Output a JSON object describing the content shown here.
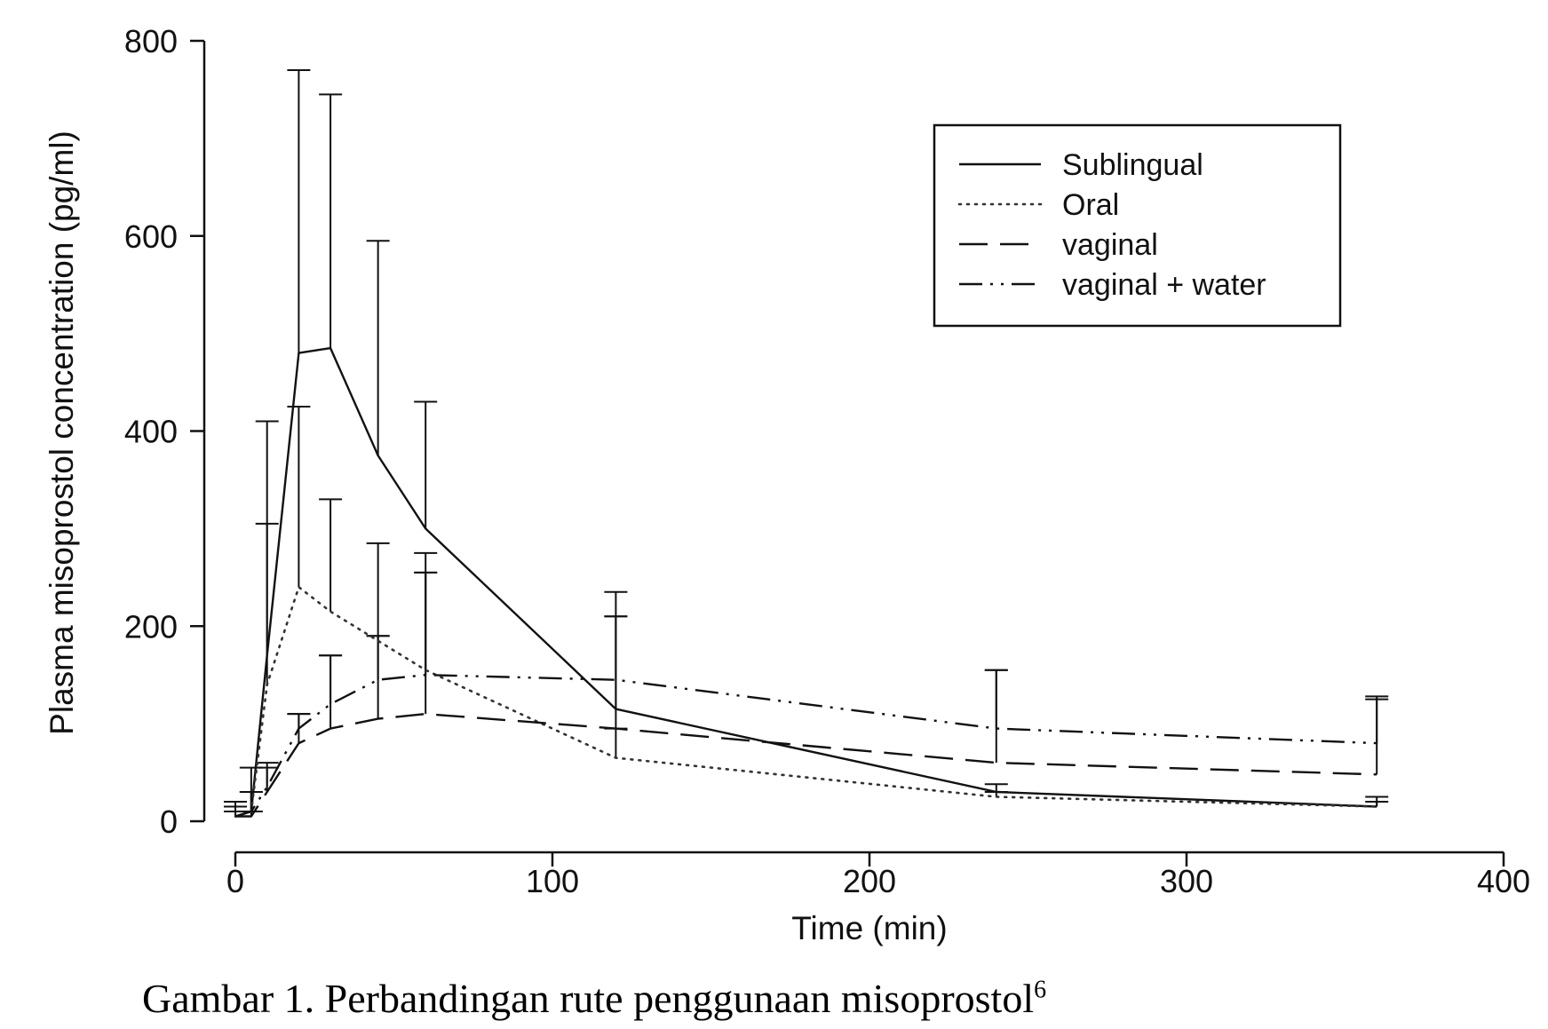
{
  "chart_data": {
    "type": "line",
    "title": "",
    "xlabel": "Time (min)",
    "ylabel": "Plasma misoprostol concentration (pg/ml)",
    "xlim": [
      0,
      400
    ],
    "ylim": [
      0,
      800
    ],
    "xticks": [
      0,
      100,
      200,
      300,
      400
    ],
    "yticks": [
      0,
      200,
      400,
      600,
      800
    ],
    "grid": false,
    "legend_position": "top-right",
    "series": [
      {
        "name": "Sublingual",
        "style": "solid",
        "color": "#111111",
        "points": [
          [
            0,
            5
          ],
          [
            5,
            10
          ],
          [
            10,
            170
          ],
          [
            20,
            480
          ],
          [
            30,
            485
          ],
          [
            45,
            375
          ],
          [
            60,
            300
          ],
          [
            120,
            115
          ],
          [
            240,
            30
          ],
          [
            360,
            15
          ]
        ],
        "error": [
          10,
          20,
          240,
          290,
          260,
          220,
          130,
          95,
          8,
          10
        ]
      },
      {
        "name": "Oral",
        "style": "dotted",
        "color": "#333333",
        "points": [
          [
            0,
            5
          ],
          [
            5,
            10
          ],
          [
            10,
            140
          ],
          [
            20,
            240
          ],
          [
            30,
            215
          ],
          [
            45,
            185
          ],
          [
            60,
            155
          ],
          [
            120,
            65
          ],
          [
            240,
            25
          ],
          [
            360,
            15
          ]
        ],
        "error": [
          5,
          20,
          165,
          185,
          115,
          100,
          120,
          30,
          5,
          5
        ]
      },
      {
        "name": "vaginal",
        "style": "dashed",
        "color": "#111111",
        "points": [
          [
            0,
            5
          ],
          [
            5,
            5
          ],
          [
            10,
            30
          ],
          [
            20,
            80
          ],
          [
            30,
            95
          ],
          [
            45,
            105
          ],
          [
            60,
            110
          ],
          [
            120,
            95
          ],
          [
            240,
            60
          ],
          [
            360,
            48
          ]
        ],
        "error": [
          5,
          5,
          25,
          30,
          75,
          85,
          145,
          115,
          95,
          80
        ]
      },
      {
        "name": "vaginal + water",
        "style": "dashdot",
        "color": "#111111",
        "points": [
          [
            0,
            5
          ],
          [
            5,
            10
          ],
          [
            10,
            35
          ],
          [
            20,
            95
          ],
          [
            30,
            120
          ],
          [
            45,
            145
          ],
          [
            60,
            150
          ],
          [
            120,
            145
          ],
          [
            240,
            95
          ],
          [
            360,
            80
          ]
        ],
        "error": [
          15,
          45,
          25,
          15,
          50,
          45,
          105,
          90,
          60,
          45
        ]
      }
    ]
  },
  "caption": {
    "text": "Gambar 1. Perbandingan rute penggunaan misoprostol",
    "superscript": "6"
  }
}
